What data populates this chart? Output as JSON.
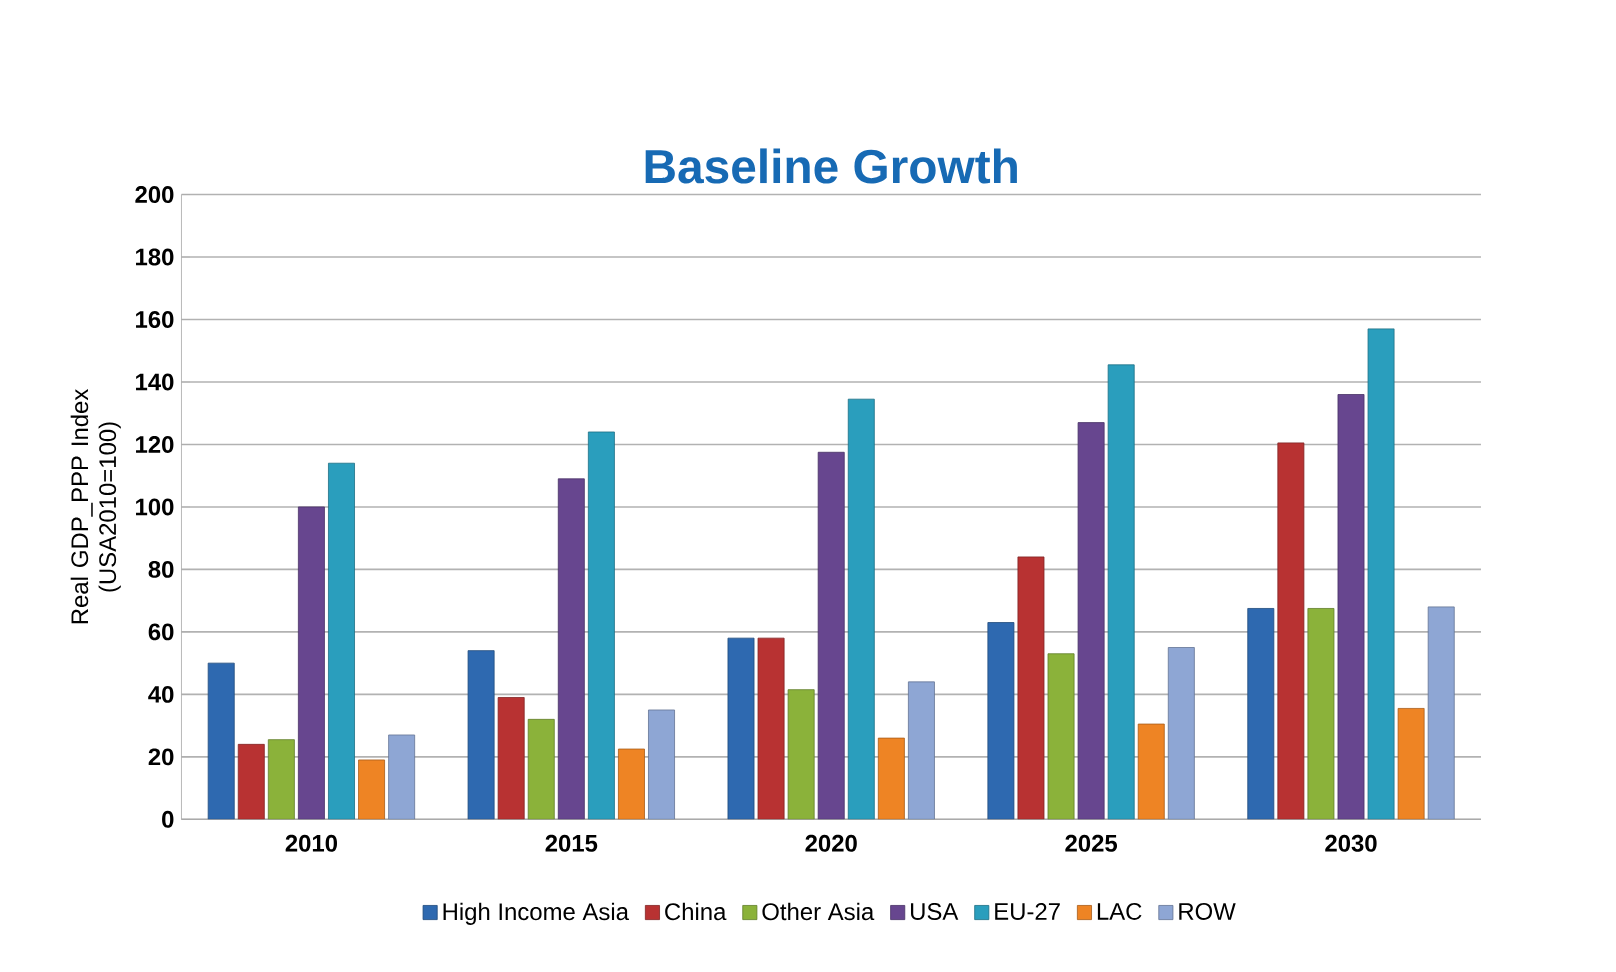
{
  "chart_data": {
    "type": "bar",
    "title": "Baseline Growth",
    "ylabel": "Real GDP_PPP Index (USA2010=100)",
    "categories": [
      "2010",
      "2015",
      "2020",
      "2025",
      "2030"
    ],
    "series": [
      {
        "name": "High Income Asia",
        "color": "#2e69b0",
        "values": [
          50,
          54,
          58,
          63,
          67.5
        ]
      },
      {
        "name": "China",
        "color": "#b83232",
        "values": [
          24,
          39,
          58,
          84,
          120.5
        ]
      },
      {
        "name": "Other Asia",
        "color": "#8bb23a",
        "values": [
          25.5,
          32,
          41.5,
          53,
          67.5
        ]
      },
      {
        "name": "USA",
        "color": "#67468f",
        "values": [
          100,
          109,
          117.5,
          127,
          136
        ]
      },
      {
        "name": "EU-27",
        "color": "#2a9ebd",
        "values": [
          114,
          124,
          134.5,
          145.5,
          157
        ]
      },
      {
        "name": "LAC",
        "color": "#ee8424",
        "values": [
          19,
          22.5,
          26,
          30.5,
          35.5
        ]
      },
      {
        "name": "ROW",
        "color": "#8ea6d4",
        "values": [
          27,
          35,
          44,
          55,
          68
        ]
      }
    ],
    "ylim": [
      0,
      200
    ],
    "yticks": [
      0,
      20,
      40,
      60,
      80,
      100,
      120,
      140,
      160,
      180,
      200
    ],
    "grid": "y",
    "legend": "bottom"
  }
}
